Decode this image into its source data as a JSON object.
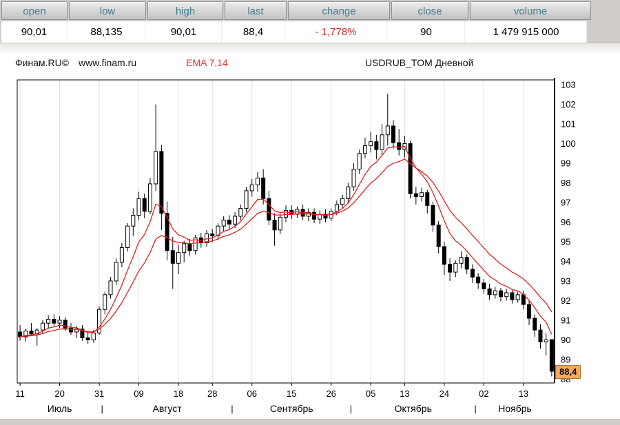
{
  "quote_panel": {
    "columns": [
      {
        "label": "open",
        "value": "90,01"
      },
      {
        "label": "low",
        "value": "88,135"
      },
      {
        "label": "high",
        "value": "90,01"
      },
      {
        "label": "last",
        "value": "88,4"
      },
      {
        "label": "change",
        "value": "- 1,778%",
        "negative": true
      },
      {
        "label": "close",
        "value": "90"
      },
      {
        "label": "volume",
        "value": "1 479 915 000"
      }
    ]
  },
  "info_bar": {
    "brand": "Финам.RU©",
    "site": "www.finam.ru",
    "ema_label": "EMA 7,14",
    "chart_title": "USDRUB_TOM Дневной"
  },
  "colors": {
    "header_text": "#417b8e",
    "negative_change": "#d42a2a",
    "ema_line": "#e81f1f",
    "candle_up_fill": "#ffffff",
    "candle_down_fill": "#000000",
    "last_price_tag_bg": "#f6a95c",
    "panel_bg": "#d0cdc8"
  },
  "chart_data": {
    "type": "candlestick",
    "title": "USDRUB_TOM Дневной",
    "xlabel": "",
    "ylabel": "",
    "legend": "none",
    "grid": "vertical-light",
    "ema_periods": [
      7,
      14
    ],
    "y_ticks": [
      88,
      89,
      90,
      91,
      92,
      93,
      94,
      95,
      96,
      97,
      98,
      99,
      100,
      101,
      102,
      103
    ],
    "y_domain": [
      87.8,
      103.25
    ],
    "x_ticks": [
      {
        "label": "11",
        "index": 0
      },
      {
        "label": "20",
        "index": 7
      },
      {
        "label": "31",
        "index": 14
      },
      {
        "label": "09",
        "index": 21
      },
      {
        "label": "18",
        "index": 28
      },
      {
        "label": "28",
        "index": 34
      },
      {
        "label": "06",
        "index": 41
      },
      {
        "label": "15",
        "index": 48
      },
      {
        "label": "26",
        "index": 55
      },
      {
        "label": "05",
        "index": 62
      },
      {
        "label": "13",
        "index": 68
      },
      {
        "label": "24",
        "index": 75
      },
      {
        "label": "02",
        "index": 82
      },
      {
        "label": "13",
        "index": 89
      }
    ],
    "months": [
      {
        "label": "Июль",
        "start": 0,
        "end": 14
      },
      {
        "label": "Август",
        "start": 15,
        "end": 37
      },
      {
        "label": "Сентябрь",
        "start": 38,
        "end": 58
      },
      {
        "label": "Октябрь",
        "start": 59,
        "end": 80
      },
      {
        "label": "Ноябрь",
        "start": 81,
        "end": 94
      }
    ],
    "last_price_label": {
      "text": "88,4",
      "price": 88.4
    },
    "ohlc": [
      [
        90.4,
        90.75,
        89.95,
        90.15
      ],
      [
        90.15,
        90.55,
        89.9,
        90.45
      ],
      [
        90.45,
        90.85,
        90.2,
        90.3
      ],
      [
        90.3,
        90.6,
        89.7,
        90.5
      ],
      [
        90.5,
        91.0,
        90.3,
        90.85
      ],
      [
        90.85,
        91.25,
        90.55,
        91.05
      ],
      [
        91.05,
        91.3,
        90.7,
        90.85
      ],
      [
        90.85,
        91.2,
        90.6,
        91.0
      ],
      [
        91.0,
        91.15,
        90.45,
        90.6
      ],
      [
        90.6,
        90.85,
        90.25,
        90.4
      ],
      [
        90.4,
        90.7,
        90.1,
        90.55
      ],
      [
        90.55,
        90.75,
        89.95,
        90.1
      ],
      [
        90.1,
        90.45,
        89.8,
        90.0
      ],
      [
        90.0,
        90.5,
        89.85,
        90.35
      ],
      [
        90.35,
        91.7,
        90.25,
        91.55
      ],
      [
        91.55,
        92.45,
        91.3,
        92.3
      ],
      [
        92.3,
        93.2,
        92.1,
        93.0
      ],
      [
        93.0,
        94.15,
        92.8,
        93.95
      ],
      [
        93.95,
        94.95,
        93.7,
        94.7
      ],
      [
        94.7,
        95.95,
        94.5,
        95.8
      ],
      [
        95.8,
        96.7,
        95.3,
        96.35
      ],
      [
        96.35,
        97.55,
        96.1,
        97.2
      ],
      [
        97.2,
        97.45,
        96.2,
        96.55
      ],
      [
        96.55,
        98.25,
        96.4,
        97.95
      ],
      [
        97.95,
        102.0,
        97.6,
        99.6
      ],
      [
        99.6,
        99.95,
        95.6,
        96.45
      ],
      [
        96.45,
        97.05,
        94.05,
        94.55
      ],
      [
        94.55,
        95.25,
        92.6,
        93.9
      ],
      [
        93.9,
        94.85,
        93.35,
        94.45
      ],
      [
        94.45,
        95.05,
        93.95,
        94.9
      ],
      [
        94.9,
        95.15,
        94.3,
        94.55
      ],
      [
        94.55,
        95.35,
        94.35,
        95.2
      ],
      [
        95.2,
        95.45,
        94.7,
        94.95
      ],
      [
        94.95,
        95.6,
        94.75,
        95.4
      ],
      [
        95.4,
        95.65,
        95.0,
        95.3
      ],
      [
        95.3,
        95.95,
        95.1,
        95.8
      ],
      [
        95.8,
        96.3,
        95.55,
        96.1
      ],
      [
        96.1,
        96.35,
        95.65,
        95.9
      ],
      [
        95.9,
        96.5,
        95.7,
        96.3
      ],
      [
        96.3,
        96.9,
        96.1,
        96.7
      ],
      [
        96.7,
        97.8,
        96.5,
        97.6
      ],
      [
        97.6,
        98.2,
        97.3,
        97.9
      ],
      [
        97.9,
        98.55,
        97.55,
        98.25
      ],
      [
        98.25,
        98.7,
        96.9,
        97.2
      ],
      [
        97.2,
        97.6,
        95.85,
        96.1
      ],
      [
        96.1,
        96.45,
        94.8,
        95.6
      ],
      [
        95.6,
        96.45,
        95.4,
        96.25
      ],
      [
        96.25,
        96.85,
        96.0,
        96.6
      ],
      [
        96.6,
        96.85,
        96.15,
        96.4
      ],
      [
        96.4,
        96.8,
        96.2,
        96.65
      ],
      [
        96.65,
        96.9,
        96.1,
        96.3
      ],
      [
        96.3,
        96.7,
        96.05,
        96.5
      ],
      [
        96.5,
        96.7,
        95.95,
        96.15
      ],
      [
        96.15,
        96.6,
        95.9,
        96.4
      ],
      [
        96.4,
        96.65,
        96.0,
        96.2
      ],
      [
        96.2,
        96.7,
        96.05,
        96.55
      ],
      [
        96.55,
        97.1,
        96.35,
        96.9
      ],
      [
        96.9,
        97.4,
        96.7,
        97.2
      ],
      [
        97.2,
        98.0,
        97.0,
        97.8
      ],
      [
        97.8,
        99.0,
        97.6,
        98.7
      ],
      [
        98.7,
        99.7,
        98.45,
        99.5
      ],
      [
        99.5,
        100.3,
        99.25,
        99.9
      ],
      [
        99.9,
        100.6,
        99.55,
        100.1
      ],
      [
        100.1,
        100.45,
        99.2,
        99.7
      ],
      [
        99.7,
        101.0,
        99.45,
        100.45
      ],
      [
        100.45,
        102.55,
        99.9,
        100.9
      ],
      [
        100.9,
        101.2,
        99.75,
        100.05
      ],
      [
        100.05,
        100.75,
        99.4,
        99.7
      ],
      [
        99.7,
        100.4,
        99.3,
        100.0
      ],
      [
        100.0,
        100.15,
        97.2,
        97.45
      ],
      [
        97.45,
        97.8,
        96.9,
        97.3
      ],
      [
        97.3,
        97.75,
        97.05,
        97.5
      ],
      [
        97.5,
        97.65,
        96.45,
        96.85
      ],
      [
        96.85,
        97.05,
        95.5,
        95.85
      ],
      [
        95.85,
        96.05,
        94.4,
        94.75
      ],
      [
        94.75,
        95.0,
        93.3,
        93.85
      ],
      [
        93.85,
        94.15,
        93.0,
        93.45
      ],
      [
        93.45,
        94.05,
        93.2,
        93.9
      ],
      [
        93.9,
        94.5,
        93.65,
        94.2
      ],
      [
        94.2,
        94.35,
        93.35,
        93.6
      ],
      [
        93.6,
        93.85,
        92.9,
        93.2
      ],
      [
        93.2,
        93.4,
        92.6,
        92.9
      ],
      [
        92.9,
        93.1,
        92.35,
        92.6
      ],
      [
        92.6,
        92.85,
        92.05,
        92.3
      ],
      [
        92.3,
        92.7,
        92.1,
        92.5
      ],
      [
        92.5,
        92.65,
        91.95,
        92.2
      ],
      [
        92.2,
        92.6,
        92.0,
        92.4
      ],
      [
        92.4,
        92.55,
        91.85,
        92.05
      ],
      [
        92.05,
        92.45,
        91.9,
        92.3
      ],
      [
        92.3,
        92.5,
        91.55,
        91.8
      ],
      [
        91.8,
        92.0,
        90.75,
        91.1
      ],
      [
        91.1,
        91.3,
        90.15,
        90.5
      ],
      [
        90.5,
        90.8,
        89.55,
        89.9
      ],
      [
        89.9,
        90.35,
        89.2,
        90.0
      ],
      [
        90.01,
        90.01,
        88.135,
        88.4
      ]
    ]
  }
}
